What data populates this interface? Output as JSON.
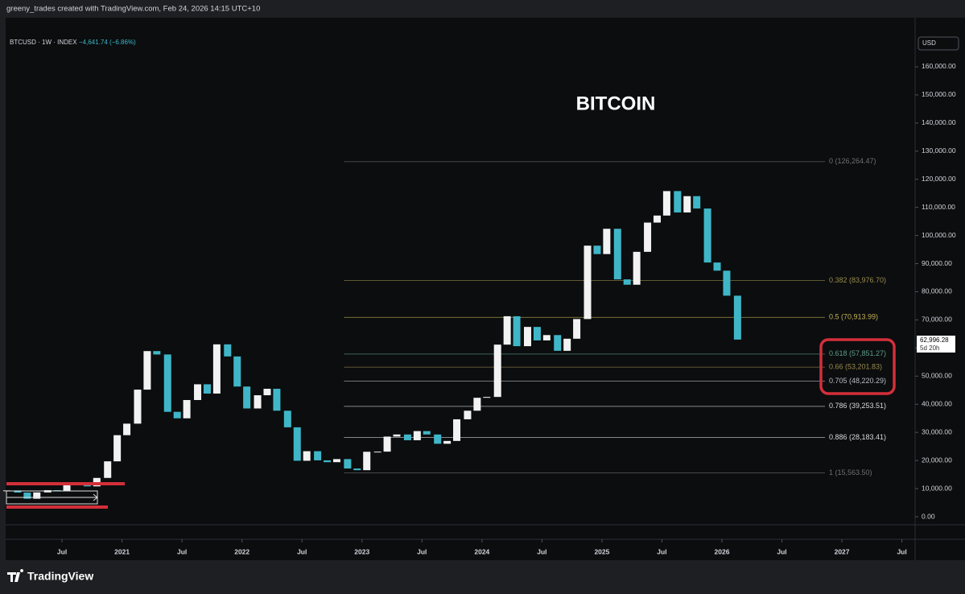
{
  "header": "greeny_trades created with TradingView.com, Feb 24, 2026 14:15 UTC+10",
  "footer": "TradingView",
  "chart_data": {
    "type": "candlestick",
    "title": "BITCOIN",
    "symbol": "BTCUSD · 1W · INDEX",
    "change": "−4,641.74 (−6.86%)",
    "currency": "USD",
    "price_label": "62,996.28",
    "countdown": "5d 20h",
    "up_color": "#f2f2f2",
    "down_color": "#3fb6c8",
    "xlim": [
      2020.03,
      2027.61
    ],
    "ylim": [
      -2862,
      170870
    ],
    "xticks": [
      {
        "value": 2020.5,
        "label": "Jul"
      },
      2021,
      {
        "value": 2021.5,
        "label": "Jul"
      },
      2022,
      {
        "value": 2022.5,
        "label": "Jul"
      },
      2023,
      {
        "value": 2023.5,
        "label": "Jul"
      },
      2024,
      {
        "value": 2024.5,
        "label": "Jul"
      },
      2025,
      {
        "value": 2025.5,
        "label": "Jul"
      },
      2026,
      {
        "value": 2026.5,
        "label": "Jul"
      },
      2027,
      {
        "value": 2027.5,
        "label": "Jul"
      }
    ],
    "yticks": [
      {
        "value": 0,
        "label": "0.00"
      },
      {
        "value": 10000,
        "label": "10,000.00"
      },
      {
        "value": 20000,
        "label": "20,000.00"
      },
      {
        "value": 30000,
        "label": "30,000.00"
      },
      {
        "value": 40000,
        "label": "40,000.00"
      },
      {
        "value": 50000,
        "label": "50,000.00"
      },
      {
        "value": 60000,
        "label": "60,000.00"
      },
      {
        "value": 70000,
        "label": "70,000.00"
      },
      {
        "value": 80000,
        "label": "80,000.00"
      },
      {
        "value": 90000,
        "label": "90,000.00"
      },
      {
        "value": 100000,
        "label": "100,000.00"
      },
      {
        "value": 110000,
        "label": "110,000.00"
      },
      {
        "value": 120000,
        "label": "120,000.00"
      },
      {
        "value": 130000,
        "label": "130,000.00"
      },
      {
        "value": 140000,
        "label": "140,000.00"
      },
      {
        "value": 150000,
        "label": "150,000.00"
      },
      {
        "value": 160000,
        "label": "160,000.00"
      }
    ],
    "fib_start": 2022.85,
    "fib_levels": [
      {
        "value": 126264.47,
        "label": "0 (126,264.47)",
        "color": "#6d7075"
      },
      {
        "value": 83976.7,
        "label": "0.382 (83,976.70)",
        "color": "#9a8a4e"
      },
      {
        "value": 70913.99,
        "label": "0.5 (70,913.99)",
        "color": "#c4b25a"
      },
      {
        "value": 57851.27,
        "label": "0.618 (57,851.27)",
        "color": "#5f9c8c"
      },
      {
        "value": 53201.83,
        "label": "0.66 (53,201.83)",
        "color": "#9a8a4e"
      },
      {
        "value": 48220.29,
        "label": "0.705 (48,220.29)",
        "color": "#b8bcc4"
      },
      {
        "value": 39253.51,
        "label": "0.786 (39,253.51)",
        "color": "#d8dadf"
      },
      {
        "value": 28183.41,
        "label": "0.886 (28,183.41)",
        "color": "#d8dadf"
      },
      {
        "value": 15563.5,
        "label": "1 (15,563.50)",
        "color": "#6d7075"
      }
    ],
    "x": [
      2020.04,
      2020.13,
      2020.21,
      2020.29,
      2020.38,
      2020.46,
      2020.54,
      2020.63,
      2020.71,
      2020.79,
      2020.88,
      2020.96,
      2021.04,
      2021.13,
      2021.21,
      2021.29,
      2021.38,
      2021.46,
      2021.54,
      2021.63,
      2021.71,
      2021.79,
      2021.88,
      2021.96,
      2022.04,
      2022.13,
      2022.21,
      2022.29,
      2022.38,
      2022.46,
      2022.54,
      2022.63,
      2022.71,
      2022.79,
      2022.88,
      2022.96,
      2023.04,
      2023.13,
      2023.21,
      2023.29,
      2023.38,
      2023.46,
      2023.54,
      2023.63,
      2023.71,
      2023.79,
      2023.88,
      2023.96,
      2024.04,
      2024.13,
      2024.21,
      2024.29,
      2024.38,
      2024.46,
      2024.54,
      2024.63,
      2024.71,
      2024.79,
      2024.88,
      2024.96,
      2025.04,
      2025.13,
      2025.21,
      2025.29,
      2025.38,
      2025.46,
      2025.54,
      2025.63,
      2025.71,
      2025.79,
      2025.88,
      2025.96,
      2026.04,
      2026.13
    ],
    "series": [
      {
        "values": [
          9350,
          8600,
          6400,
          8650,
          9450,
          9150,
          11350,
          11650,
          10800,
          13800,
          19700,
          29000,
          33100,
          45200,
          58900,
          57700,
          37300,
          35000,
          41500,
          47100,
          43800,
          61300,
          57000,
          46300,
          38500,
          43200,
          45500,
          37700,
          31800,
          19900,
          23300,
          20050,
          19400,
          20500,
          17150,
          16550,
          23100,
          23150,
          28500,
          29250,
          27200,
          30450,
          29250,
          25950,
          26950,
          34650,
          37700,
          42300,
          42600,
          61200,
          71300,
          60650,
          67500,
          62700,
          64600,
          59000,
          63300,
          70300,
          96400,
          93400,
          102400,
          84400,
          82500,
          94200,
          104600,
          107100,
          115800,
          108200,
          114000,
          109600,
          90400,
          87500,
          78600,
          62996.28
        ]
      }
    ]
  }
}
